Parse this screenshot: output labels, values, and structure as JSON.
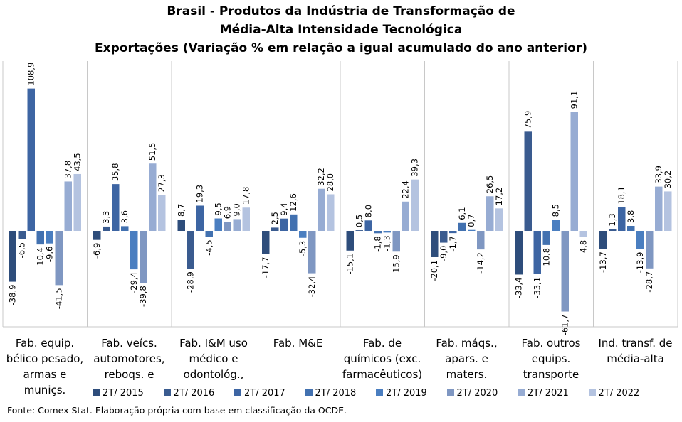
{
  "title_lines": [
    "Brasil - Produtos da Indústria de Transformação de",
    "Média-Alta Intensidade Tecnológica",
    "Exportações (Variação % em relação a igual acumulado do ano anterior)"
  ],
  "source": "Fonte: Comex Stat. Elaboração própria com base em classificação da OCDE.",
  "chart_data": {
    "type": "bar",
    "categories": [
      [
        "Fab. equip.",
        "bélico pesado,",
        "armas e",
        "muniçs."
      ],
      [
        "Fab. veícs.",
        "automotores,",
        "reboqs. e"
      ],
      [
        "Fab. I&M uso",
        "médico e",
        "odontológ.,"
      ],
      [
        "Fab. M&E"
      ],
      [
        "Fab. de",
        "químicos (exc.",
        "farmacêuticos)"
      ],
      [
        "Fab. máqs.,",
        "apars. e",
        "maters."
      ],
      [
        "Fab. outros",
        "equips.",
        "transporte"
      ],
      [
        "Ind. transf. de",
        "média-alta"
      ]
    ],
    "series": [
      {
        "name": "2T/ 2015",
        "color": "#2e4d7b",
        "values": [
          -38.9,
          -6.9,
          8.7,
          -17.7,
          -15.1,
          -20.1,
          -33.4,
          -13.7
        ],
        "labels": [
          "-38,9",
          "-6,9",
          "8,7",
          "-17,7",
          "-15,1",
          "-20,1",
          "-33,4",
          "-13,7"
        ]
      },
      {
        "name": "2T/ 2016",
        "color": "#3a5b8f",
        "values": [
          -6.5,
          3.3,
          -28.9,
          2.5,
          0.5,
          -9.0,
          75.9,
          1.3
        ],
        "labels": [
          "-6,5",
          "3,3",
          "-28,9",
          "2,5",
          "0,5",
          "-9,0",
          "75,9",
          "1,3"
        ]
      },
      {
        "name": "2T/ 2017",
        "color": "#3d65a3",
        "values": [
          108.9,
          35.8,
          19.3,
          9.4,
          8.0,
          -1.7,
          -33.1,
          18.1
        ],
        "labels": [
          "108,9",
          "35,8",
          "19,3",
          "9,4",
          "8,0",
          "-1,7",
          "-33,1",
          "18,1"
        ]
      },
      {
        "name": "2T/ 2018",
        "color": "#4271b0",
        "values": [
          -10.4,
          3.6,
          -4.5,
          12.6,
          -1.8,
          6.1,
          -10.8,
          3.8
        ],
        "labels": [
          "-10,4",
          "3,6",
          "-4,5",
          "12,6",
          "-1,8",
          "6,1",
          "-10,8",
          "3,8"
        ]
      },
      {
        "name": "2T/ 2019",
        "color": "#4a7ec0",
        "values": [
          -9.6,
          -29.4,
          9.5,
          -5.3,
          -1.3,
          0.7,
          8.5,
          -13.9
        ],
        "labels": [
          "-9,6",
          "-29,4",
          "9,5",
          "-5,3",
          "-1,3",
          "0,7",
          "8,5",
          "-13,9"
        ]
      },
      {
        "name": "2T/ 2020",
        "color": "#7f97c2",
        "values": [
          -41.5,
          -39.8,
          6.9,
          -32.4,
          -15.9,
          -14.2,
          -61.7,
          -28.7
        ],
        "labels": [
          "-41,5",
          "-39,8",
          "6,9",
          "-32,4",
          "-15,9",
          "-14,2",
          "-61,7",
          "-28,7"
        ]
      },
      {
        "name": "2T/ 2021",
        "color": "#97acd3",
        "values": [
          37.8,
          51.5,
          9.0,
          32.2,
          22.4,
          26.5,
          91.1,
          33.9
        ],
        "labels": [
          "37,8",
          "51,5",
          "9,0",
          "32,2",
          "22,4",
          "26,5",
          "91,1",
          "33,9"
        ]
      },
      {
        "name": "2T/ 2022",
        "color": "#b4c3e0",
        "values": [
          43.5,
          27.3,
          17.8,
          28.0,
          39.3,
          17.2,
          -4.8,
          30.2
        ],
        "labels": [
          "43,5",
          "27,3",
          "17,8",
          "28,0",
          "39,3",
          "17,2",
          "-4,8",
          "30,2"
        ]
      }
    ],
    "ylim": [
      -65,
      110
    ],
    "grid": false,
    "legend_position": "bottom"
  }
}
